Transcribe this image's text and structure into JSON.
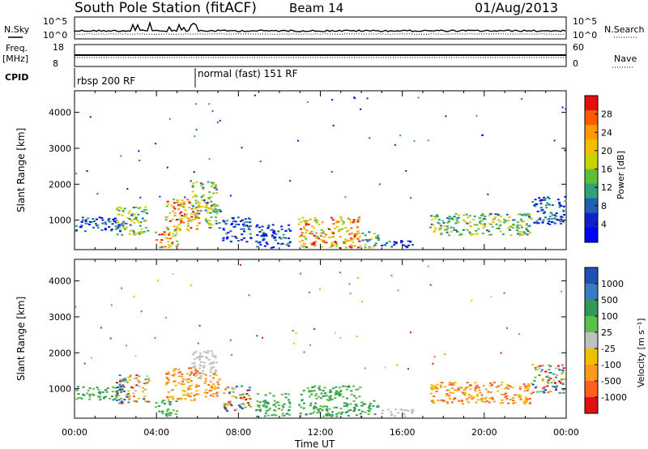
{
  "header": {
    "title": "South Pole Station (fitACF)",
    "beam": "Beam 14",
    "date": "01/Aug/2013"
  },
  "params": {
    "nsky_label": "N.Sky",
    "nsearch_label": "N.Search",
    "nsky_ticks": [
      "10^5",
      "10^0"
    ],
    "nsearch_ticks": [
      "10^5",
      "10^0"
    ],
    "freq_label": "Freq.",
    "freq_unit": "[MHz]",
    "freq_ticks": [
      "18",
      "8"
    ],
    "nave_label": "Nave",
    "nave_ticks": [
      "60",
      "0"
    ],
    "cpid_label": "CPID",
    "cpid_modes": [
      "rbsp 200 RF",
      "normal (fast) 151 RF"
    ]
  },
  "chart_data": [
    {
      "type": "heatmap",
      "name": "power",
      "ylabel": "Slant Range [km]",
      "xlabel": "",
      "x_unit": "hours UT",
      "xlim": [
        0,
        24
      ],
      "ylim": [
        180,
        4600
      ],
      "y_ticks": [
        "1000",
        "2000",
        "3000",
        "4000"
      ],
      "colorbar": {
        "label": "Power [dB]",
        "ticks": [
          "28",
          "24",
          "20",
          "16",
          "12",
          "8",
          "4"
        ],
        "colors": [
          "#e01010",
          "#ff5a00",
          "#ff9a00",
          "#f0c000",
          "#c8d400",
          "#5fbf3a",
          "#2fa07a",
          "#2060b0",
          "#1020c8",
          "#0000ff"
        ]
      },
      "patches": [
        {
          "t0": 0.0,
          "t1": 2.2,
          "r0": 700,
          "r1": 1100,
          "level": "weak"
        },
        {
          "t0": 2.0,
          "t1": 3.6,
          "r0": 600,
          "r1": 1400,
          "level": "medium"
        },
        {
          "t0": 3.9,
          "t1": 5.0,
          "r0": 250,
          "r1": 700,
          "level": "strong"
        },
        {
          "t0": 4.4,
          "t1": 6.1,
          "r0": 700,
          "r1": 1600,
          "level": "strong"
        },
        {
          "t0": 5.7,
          "t1": 6.9,
          "r0": 1200,
          "r1": 2100,
          "level": "medium"
        },
        {
          "t0": 6.3,
          "t1": 7.1,
          "r0": 800,
          "r1": 1500,
          "level": "medium"
        },
        {
          "t0": 7.2,
          "t1": 8.6,
          "r0": 400,
          "r1": 1100,
          "level": "weak"
        },
        {
          "t0": 8.8,
          "t1": 10.5,
          "r0": 250,
          "r1": 900,
          "level": "weak"
        },
        {
          "t0": 10.9,
          "t1": 13.9,
          "r0": 250,
          "r1": 1100,
          "level": "strong"
        },
        {
          "t0": 13.9,
          "t1": 14.8,
          "r0": 250,
          "r1": 700,
          "level": "medium"
        },
        {
          "t0": 14.8,
          "t1": 16.5,
          "r0": 250,
          "r1": 450,
          "level": "weak"
        },
        {
          "t0": 17.3,
          "t1": 22.3,
          "r0": 600,
          "r1": 1200,
          "level": "medium"
        },
        {
          "t0": 22.3,
          "t1": 23.9,
          "r0": 900,
          "r1": 1700,
          "level": "weak"
        }
      ]
    },
    {
      "type": "heatmap",
      "name": "velocity",
      "ylabel": "Slant Range [km]",
      "xlabel": "Time UT",
      "xlim": [
        0,
        24
      ],
      "ylim": [
        180,
        4600
      ],
      "x_ticks": [
        "00:00",
        "04:00",
        "08:00",
        "12:00",
        "16:00",
        "20:00",
        "00:00"
      ],
      "y_ticks": [
        "1000",
        "2000",
        "3000",
        "4000"
      ],
      "colorbar": {
        "label": "Velocity [m s⁻¹]",
        "ticks": [
          "1000",
          "500",
          "100",
          "25",
          "-25",
          "-100",
          "-500",
          "-1000"
        ],
        "colors": [
          "#2050b0",
          "#3a7ac0",
          "#2f9a5a",
          "#5cbf4a",
          "#c0c0c0",
          "#f0c000",
          "#ff9a20",
          "#ff6020",
          "#e01010"
        ]
      },
      "patches": [
        {
          "t0": 0.0,
          "t1": 2.2,
          "r0": 700,
          "r1": 1100,
          "level": "toward"
        },
        {
          "t0": 2.0,
          "t1": 3.6,
          "r0": 600,
          "r1": 1400,
          "level": "mixed"
        },
        {
          "t0": 3.9,
          "t1": 5.0,
          "r0": 250,
          "r1": 700,
          "level": "toward"
        },
        {
          "t0": 4.4,
          "t1": 6.1,
          "r0": 700,
          "r1": 1600,
          "level": "away"
        },
        {
          "t0": 5.7,
          "t1": 6.9,
          "r0": 1300,
          "r1": 2100,
          "level": "ground"
        },
        {
          "t0": 6.3,
          "t1": 7.1,
          "r0": 800,
          "r1": 1500,
          "level": "away"
        },
        {
          "t0": 7.2,
          "t1": 8.6,
          "r0": 400,
          "r1": 1100,
          "level": "mixed"
        },
        {
          "t0": 8.8,
          "t1": 10.5,
          "r0": 250,
          "r1": 900,
          "level": "toward"
        },
        {
          "t0": 10.9,
          "t1": 13.9,
          "r0": 250,
          "r1": 1100,
          "level": "toward"
        },
        {
          "t0": 13.9,
          "t1": 14.8,
          "r0": 250,
          "r1": 700,
          "level": "toward"
        },
        {
          "t0": 14.8,
          "t1": 16.5,
          "r0": 250,
          "r1": 450,
          "level": "ground"
        },
        {
          "t0": 17.3,
          "t1": 22.3,
          "r0": 600,
          "r1": 1200,
          "level": "away"
        },
        {
          "t0": 22.3,
          "t1": 23.9,
          "r0": 900,
          "r1": 1700,
          "level": "mixed"
        }
      ]
    }
  ]
}
